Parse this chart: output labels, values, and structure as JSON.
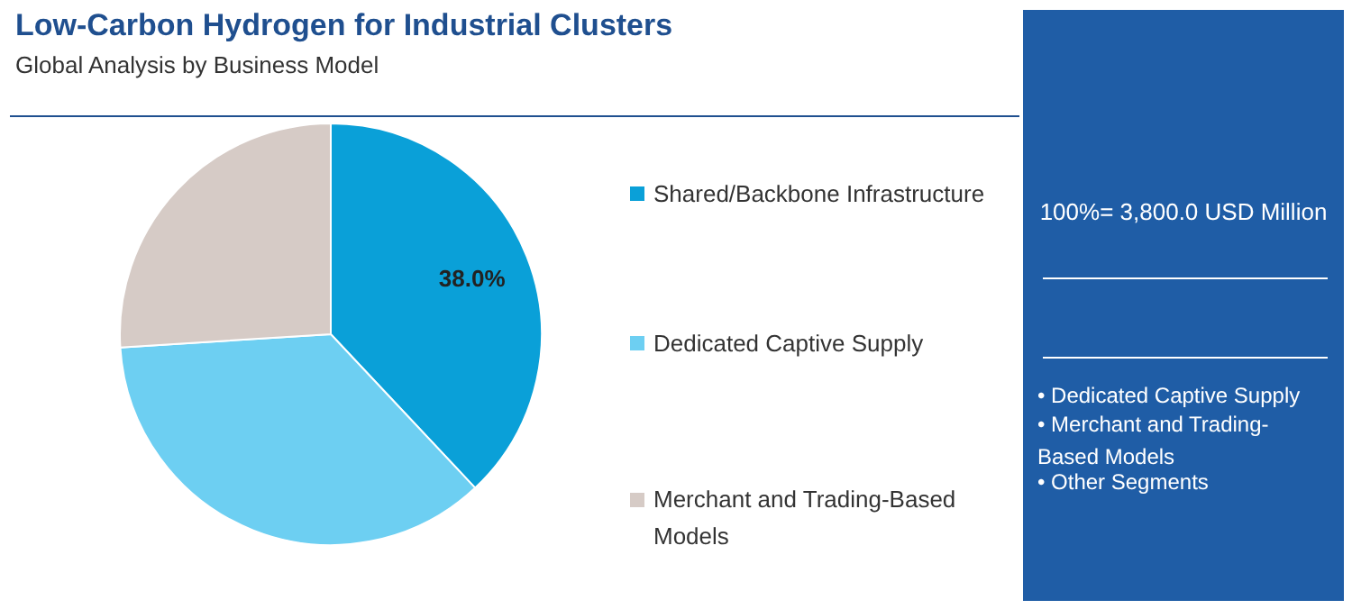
{
  "chart_data": {
    "type": "pie",
    "title": "Low-Carbon Hydrogen for Industrial Clusters",
    "subtitle": "Global Analysis by Business Model",
    "categories": [
      "Shared/Backbone Infrastructure",
      "Dedicated Captive Supply",
      "Merchant and Trading-Based Models"
    ],
    "values": [
      38,
      36,
      26
    ],
    "colors": [
      "#0aa0d8",
      "#6dcff2",
      "#d6cbc6"
    ],
    "value_labels": [
      "38.0%",
      null,
      null
    ],
    "legend": "right",
    "annotations": [
      "100%= 3,800.0 USD Million",
      "• Dedicated Captive Supply",
      "• Merchant and Trading-Based Models",
      "• Other Segments"
    ]
  }
}
